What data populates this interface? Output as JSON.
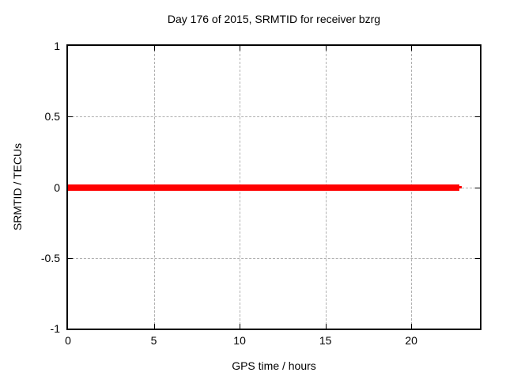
{
  "chart_data": {
    "type": "line",
    "title": "Day 176 of 2015, SRMTID for receiver bzrg",
    "xlabel": "GPS time / hours",
    "ylabel": "SRMTID / TECUs",
    "xlim": [
      0,
      24
    ],
    "ylim": [
      -1,
      1
    ],
    "x_ticks": [
      0,
      5,
      10,
      15,
      20
    ],
    "y_ticks": [
      1,
      0.5,
      0,
      -0.5,
      -1
    ],
    "grid": true,
    "legend": "none",
    "colors": {
      "line": "#ff0000",
      "grid": "#b0b0b0",
      "border": "#000000",
      "background": "#ffffff",
      "text": "#000000"
    },
    "series": [
      {
        "name": "SRMTID",
        "color": "#ff0000",
        "x": [
          0,
          22.8
        ],
        "y": [
          0,
          0
        ],
        "thickness_px": 8,
        "end_cap": {
          "x0": 22.8,
          "x1": 22.95,
          "thickness_px": 3
        }
      }
    ]
  }
}
